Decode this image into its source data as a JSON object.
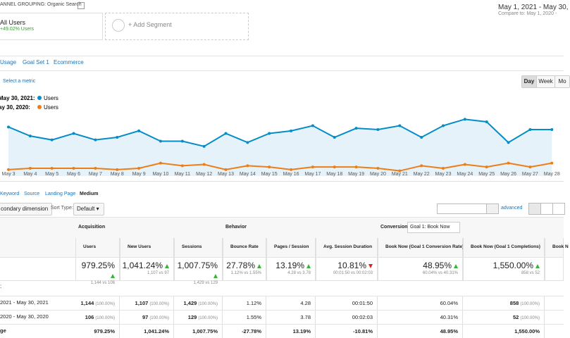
{
  "header": {
    "grouping": "ANNEL GROUPING: Organic Search",
    "segment": {
      "name": "All Users",
      "change": "+49.02% Users"
    },
    "add_segment": "+ Add Segment",
    "date_range": "May 1, 2021 - May 30,",
    "compare": "Compare to: May 1, 2020 - "
  },
  "tabs": [
    "Usage",
    "Goal Set 1",
    "Ecommerce"
  ],
  "select_metric": "Select a metric",
  "granularity": [
    "Day",
    "Week",
    "Mo"
  ],
  "chart_data": {
    "type": "line",
    "categories": [
      "May 3",
      "May 4",
      "May 5",
      "May 6",
      "May 7",
      "May 8",
      "May 9",
      "May 10",
      "May 11",
      "May 12",
      "May 13",
      "May 14",
      "May 15",
      "May 16",
      "May 17",
      "May 18",
      "May 19",
      "May 20",
      "May 21",
      "May 22",
      "May 23",
      "May 24",
      "May 25",
      "May 26",
      "May 27",
      "May 28"
    ],
    "ylim": [
      0,
      60
    ],
    "series": [
      {
        "name": "Users",
        "period": "May 30, 2021:",
        "color": "#058dc7",
        "values": [
          38,
          31,
          28,
          33,
          28,
          30,
          35,
          27,
          27,
          23,
          33,
          26,
          33,
          35,
          39,
          30,
          37,
          36,
          39,
          30,
          39,
          44,
          42,
          26,
          36,
          36
        ]
      },
      {
        "name": "Users",
        "period": "ay 30, 2020:",
        "color": "#ed7e17",
        "values": [
          5,
          6,
          6,
          6,
          6,
          5,
          6,
          10,
          8,
          9,
          5,
          8,
          7,
          5,
          7,
          7,
          7,
          6,
          4,
          8,
          6,
          9,
          7,
          10,
          7,
          10
        ]
      }
    ]
  },
  "primary_dimensions": [
    "Keyword",
    "Source",
    "Landing Page",
    "Medium"
  ],
  "toolbar": {
    "secondary": "condary dimension",
    "sort_label": "Sort Type:",
    "sort": "Default",
    "advanced": "advanced"
  },
  "table": {
    "groups": [
      "Acquisition",
      "Behavior",
      "Conversions"
    ],
    "goal": "Goal 1: Book Now",
    "columns": [
      "Users",
      "New Users",
      "Sessions",
      "Bounce Rate",
      "Pages / Session",
      "Avg. Session Duration",
      "Book Now (Goal 1 Conversion Rate)",
      "Book Now (Goal 1 Completions)",
      "Book N"
    ],
    "summary": [
      {
        "value": "979.25%",
        "detail": "1,144 vs 106",
        "trend": "up"
      },
      {
        "value": "1,041.24%",
        "detail": "1,107 vs 97",
        "trend": "up"
      },
      {
        "value": "1,007.75%",
        "detail": "1,429 vs 129",
        "trend": "up"
      },
      {
        "value": "27.78%",
        "detail": "1.12% vs 1.55%",
        "trend": "up"
      },
      {
        "value": "13.19%",
        "detail": "4.28 vs 3.78",
        "trend": "up"
      },
      {
        "value": "10.81%",
        "detail": "00:01:50 vs 00:02:03",
        "trend": "down"
      },
      {
        "value": "48.95%",
        "detail": "60.04% vs 40.31%",
        "trend": "up"
      },
      {
        "value": "1,550.00%",
        "detail": "858 vs 52",
        "trend": "up"
      }
    ],
    "group_label": ":",
    "rows": [
      {
        "label": "2021 - May 30, 2021",
        "cells": [
          {
            "value": "1,144",
            "share": "(100.00%)"
          },
          {
            "value": "1,107",
            "share": "(100.00%)"
          },
          {
            "value": "1,429",
            "share": "(100.00%)"
          },
          "1.12%",
          "4.28",
          "00:01:50",
          "60.04%",
          {
            "value": "858",
            "share": "(100.00%)"
          }
        ]
      },
      {
        "label": "2020 - May 30, 2020",
        "cells": [
          {
            "value": "106",
            "share": "(100.00%)"
          },
          {
            "value": "97",
            "share": "(100.00%)"
          },
          {
            "value": "129",
            "share": "(100.00%)"
          },
          "1.55%",
          "3.78",
          "00:02:03",
          "40.31%",
          {
            "value": "52",
            "share": "(100.00%)"
          }
        ]
      },
      {
        "label": "ge",
        "cells": [
          "979.25%",
          "1,041.24%",
          "1,007.75%",
          "-27.78%",
          "13.19%",
          "-10.81%",
          "48.95%",
          "1,550.00%"
        ]
      }
    ]
  }
}
